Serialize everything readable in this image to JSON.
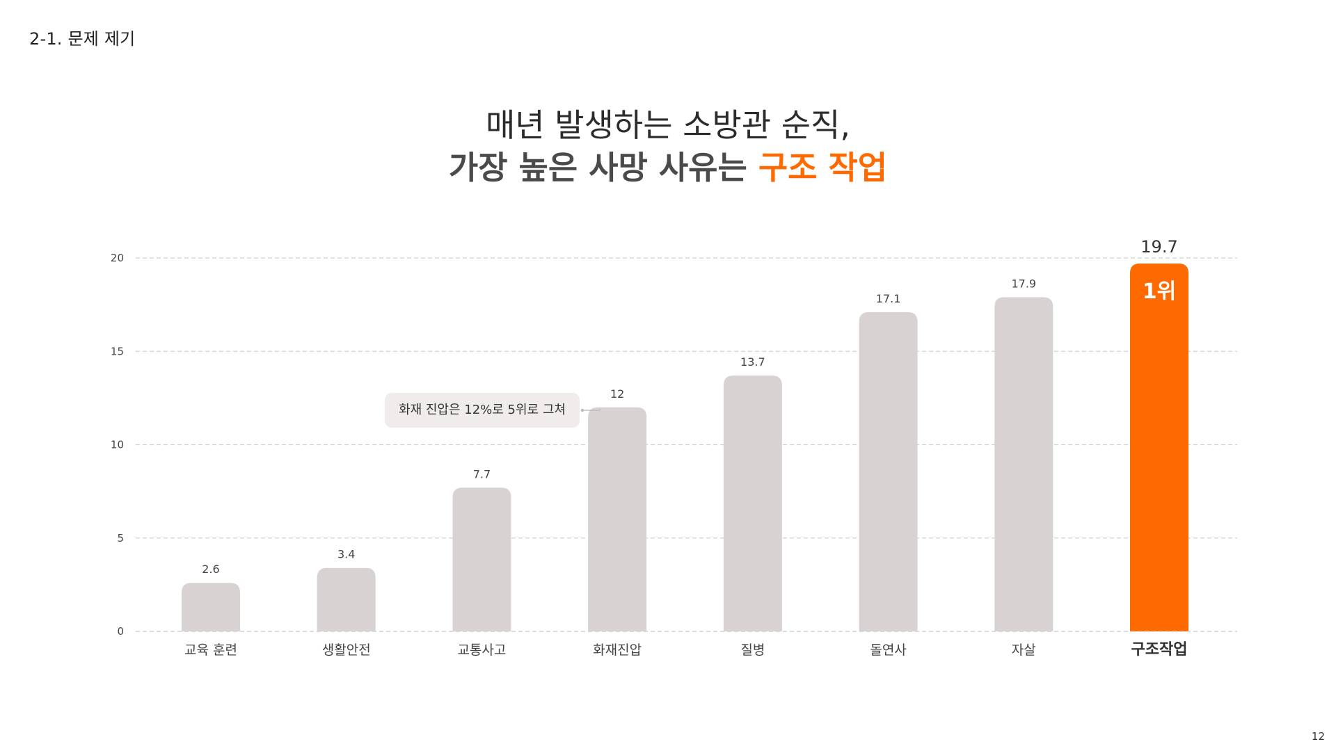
{
  "header": {
    "section_label": "2-1. 문제 제기",
    "page_number": "12"
  },
  "headline": {
    "line1": "매년 발생하는 소방관 순직,",
    "line2_prefix": "가장 높은 사망 사유는 ",
    "line2_accent": "구조 작업"
  },
  "colors": {
    "bar_default": "#d9d2d2",
    "bar_highlight": "#ff6a00",
    "grid": "#cfcfcf",
    "accent": "#ff6a00"
  },
  "annotation": {
    "text": "화재 진압은 12%로 5위로 그쳐",
    "target_category": "화재진압"
  },
  "chart_data": {
    "type": "bar",
    "categories": [
      "교육 훈련",
      "생활안전",
      "교통사고",
      "화재진압",
      "질병",
      "돌연사",
      "자살",
      "구조작업"
    ],
    "values": [
      2.6,
      3.4,
      7.7,
      12,
      13.7,
      17.1,
      17.9,
      19.7
    ],
    "data_labels": [
      "2.6",
      "3.4",
      "7.7",
      "12",
      "13.7",
      "17.1",
      "17.9",
      "19.7"
    ],
    "yticks": [
      0,
      5,
      10,
      15,
      20
    ],
    "ylim": [
      0,
      20
    ],
    "grid": true,
    "highlight_index": 7,
    "highlight_badge": "1위"
  }
}
